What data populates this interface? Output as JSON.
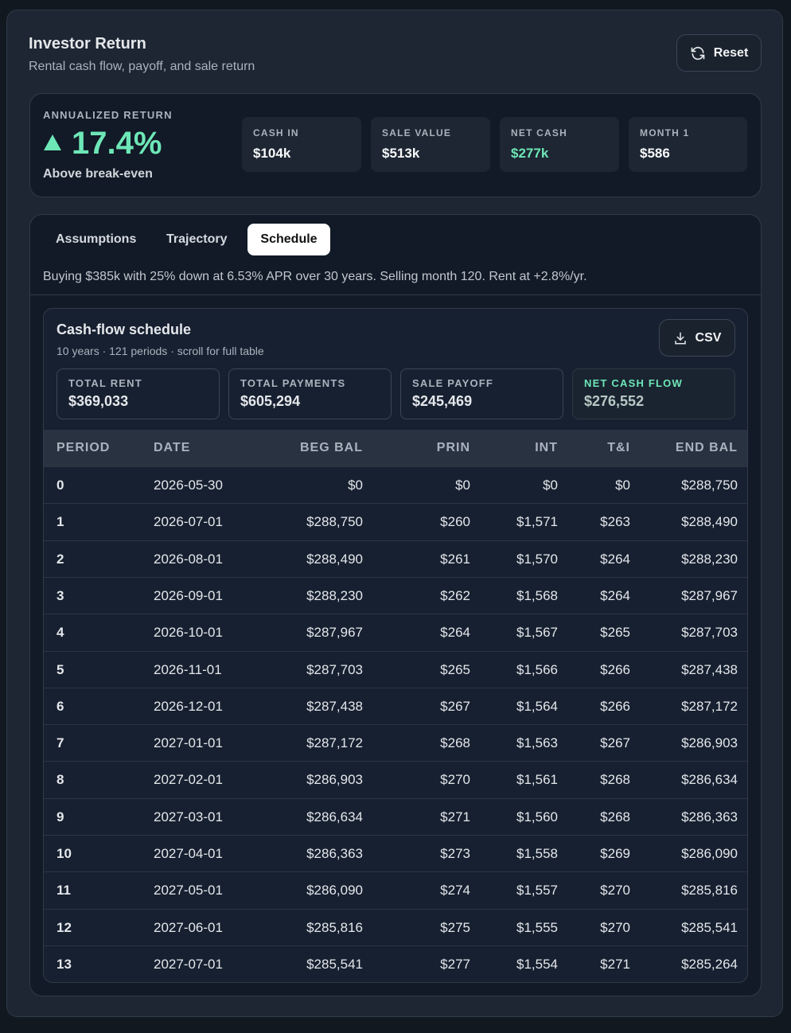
{
  "header": {
    "title": "Investor Return",
    "subtitle": "Rental cash flow, payoff, and sale return",
    "reset": "Reset"
  },
  "summary": {
    "label": "ANNUALIZED RETURN",
    "value": "17.4%",
    "note": "Above break-even",
    "stats": [
      {
        "label": "CASH IN",
        "value": "$104k"
      },
      {
        "label": "SALE VALUE",
        "value": "$513k"
      },
      {
        "label": "NET CASH",
        "value": "$277k"
      },
      {
        "label": "MONTH 1",
        "value": "$586"
      }
    ]
  },
  "tabs": [
    "Assumptions",
    "Trajectory",
    "Schedule"
  ],
  "description": "Buying $385k with 25% down at 6.53% APR over 30 years. Selling month 120. Rent at +2.8%/yr.",
  "schedule": {
    "title": "Cash-flow schedule",
    "subtitle": "10 years · 121 periods · scroll for full table",
    "csv": "CSV",
    "totals": [
      {
        "label": "TOTAL RENT",
        "value": "$369,033"
      },
      {
        "label": "TOTAL PAYMENTS",
        "value": "$605,294"
      },
      {
        "label": "SALE PAYOFF",
        "value": "$245,469"
      },
      {
        "label": "NET CASH FLOW",
        "value": "$276,552"
      }
    ],
    "table": {
      "columns": [
        "PERIOD",
        "DATE",
        "BEG BAL",
        "PRIN",
        "INT",
        "T&I",
        "END BAL"
      ],
      "rows": [
        [
          "0",
          "2026-05-30",
          "$0",
          "$0",
          "$0",
          "$0",
          "$288,750"
        ],
        [
          "1",
          "2026-07-01",
          "$288,750",
          "$260",
          "$1,571",
          "$263",
          "$288,490"
        ],
        [
          "2",
          "2026-08-01",
          "$288,490",
          "$261",
          "$1,570",
          "$264",
          "$288,230"
        ],
        [
          "3",
          "2026-09-01",
          "$288,230",
          "$262",
          "$1,568",
          "$264",
          "$287,967"
        ],
        [
          "4",
          "2026-10-01",
          "$287,967",
          "$264",
          "$1,567",
          "$265",
          "$287,703"
        ],
        [
          "5",
          "2026-11-01",
          "$287,703",
          "$265",
          "$1,566",
          "$266",
          "$287,438"
        ],
        [
          "6",
          "2026-12-01",
          "$287,438",
          "$267",
          "$1,564",
          "$266",
          "$287,172"
        ],
        [
          "7",
          "2027-01-01",
          "$287,172",
          "$268",
          "$1,563",
          "$267",
          "$286,903"
        ],
        [
          "8",
          "2027-02-01",
          "$286,903",
          "$270",
          "$1,561",
          "$268",
          "$286,634"
        ],
        [
          "9",
          "2027-03-01",
          "$286,634",
          "$271",
          "$1,560",
          "$268",
          "$286,363"
        ],
        [
          "10",
          "2027-04-01",
          "$286,363",
          "$273",
          "$1,558",
          "$269",
          "$286,090"
        ],
        [
          "11",
          "2027-05-01",
          "$286,090",
          "$274",
          "$1,557",
          "$270",
          "$285,816"
        ],
        [
          "12",
          "2027-06-01",
          "$285,816",
          "$275",
          "$1,555",
          "$270",
          "$285,541"
        ],
        [
          "13",
          "2027-07-01",
          "$285,541",
          "$277",
          "$1,554",
          "$271",
          "$285,264"
        ]
      ]
    }
  }
}
